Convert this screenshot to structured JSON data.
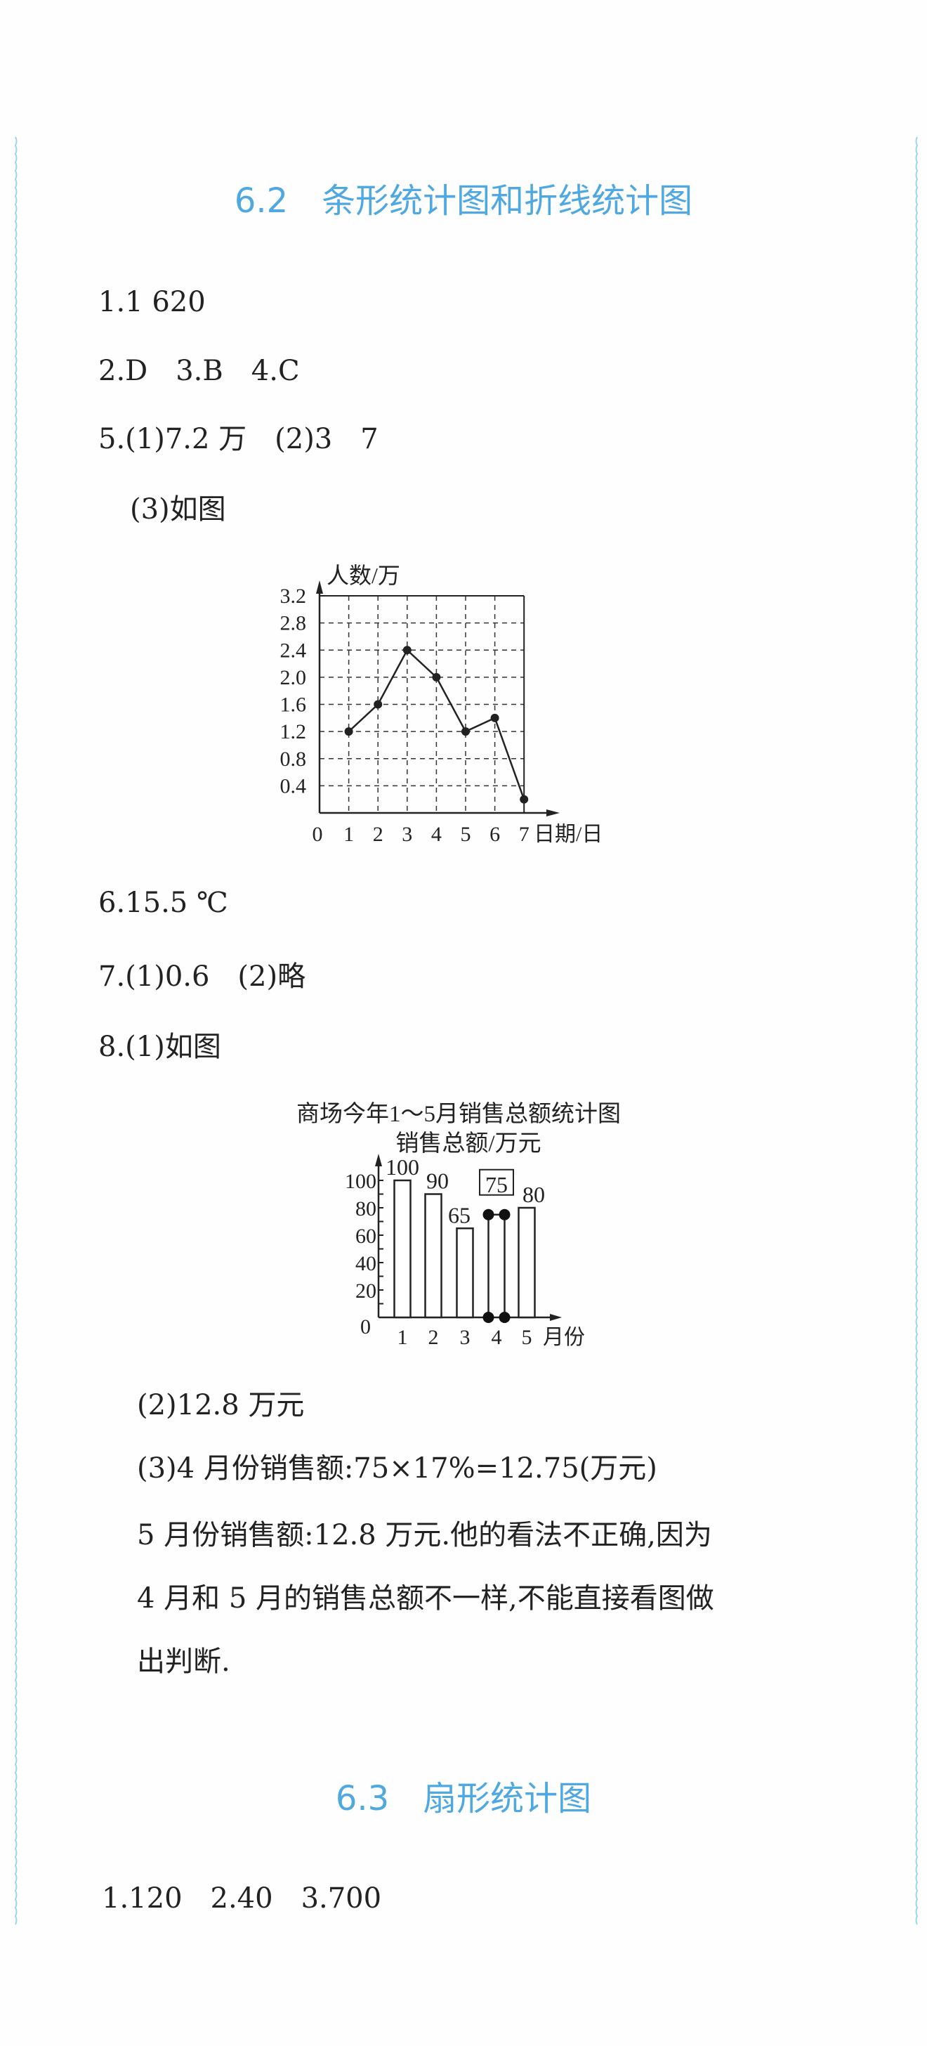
{
  "colors": {
    "heading": "#4fa8e0",
    "border": "#9bd3f0",
    "ink": "#222222"
  },
  "section1": {
    "title": "6.2　条形统计图和折线统计图",
    "answers": [
      "1.1 620",
      "2.D　3.B　4.C",
      "5.(1)7.2 万　(2)3　7",
      "(3)如图",
      "6.15.5 ℃",
      "7.(1)0.6　(2)略",
      "8.(1)如图",
      "(2)12.8 万元",
      "(3)4 月份销售额:75×17%=12.75(万元)",
      "5 月份销售额:12.8 万元.他的看法不正确,因为",
      "4 月和 5 月的销售总额不一样,不能直接看图做",
      "出判断."
    ]
  },
  "section2": {
    "title": "6.3　扇形统计图",
    "answers": [
      "1.120　2.40　3.700"
    ]
  },
  "chart_data": [
    {
      "type": "line",
      "title": "",
      "ylabel": "人数/万",
      "xlabel": "日期/日",
      "x": [
        1,
        2,
        3,
        4,
        5,
        6,
        7
      ],
      "x_ticks": [
        "0",
        "1",
        "2",
        "3",
        "4",
        "5",
        "6",
        "7"
      ],
      "y_ticks": [
        "0.4",
        "0.8",
        "1.2",
        "1.6",
        "2.0",
        "2.4",
        "2.8",
        "3.2"
      ],
      "values": [
        1.2,
        1.6,
        2.4,
        2.0,
        1.2,
        1.4,
        0.2
      ],
      "ylim": [
        0,
        3.2
      ],
      "xlim": [
        0,
        7
      ],
      "grid": "dashed"
    },
    {
      "type": "bar",
      "title": "商场今年1～5月销售总额统计图",
      "ylabel": "销售总额/万元",
      "xlabel": "月份",
      "categories": [
        "1",
        "2",
        "3",
        "4",
        "5"
      ],
      "values": [
        100,
        90,
        65,
        75,
        80
      ],
      "data_labels": [
        "100",
        "90",
        "65",
        "75",
        "80"
      ],
      "y_ticks": [
        "0",
        "20",
        "40",
        "60",
        "80",
        "100"
      ],
      "ylim": [
        0,
        100
      ],
      "completed_bar": "4"
    }
  ]
}
